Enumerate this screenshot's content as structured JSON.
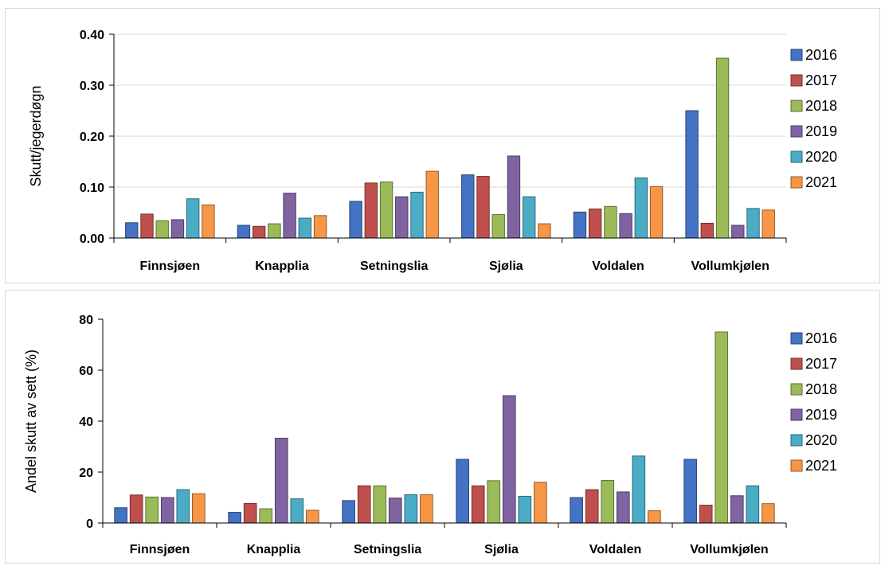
{
  "chart_data": [
    {
      "type": "bar",
      "ylabel": "Skutt/jegerdøgn",
      "xlabel": "",
      "ylim": [
        0,
        0.4
      ],
      "yticks": [
        0,
        0.1,
        0.2,
        0.3,
        0.4
      ],
      "ytick_labels": [
        "0.00",
        "0.10",
        "0.20",
        "0.30",
        "0.40"
      ],
      "categories": [
        "Finnsjøen",
        "Knapplia",
        "Setningslia",
        "Sjølia",
        "Voldalen",
        "Vollumkjølen"
      ],
      "legend_position": "right",
      "grid": true,
      "series": [
        {
          "name": "2016",
          "color": "#4472c4",
          "values": [
            0.03,
            0.025,
            0.072,
            0.124,
            0.051,
            0.25
          ]
        },
        {
          "name": "2017",
          "color": "#c0504d",
          "values": [
            0.047,
            0.023,
            0.108,
            0.121,
            0.057,
            0.029
          ]
        },
        {
          "name": "2018",
          "color": "#9bbb59",
          "values": [
            0.034,
            0.028,
            0.11,
            0.046,
            0.062,
            0.353
          ]
        },
        {
          "name": "2019",
          "color": "#8064a2",
          "values": [
            0.036,
            0.088,
            0.081,
            0.161,
            0.048,
            0.025
          ]
        },
        {
          "name": "2020",
          "color": "#4bacc6",
          "values": [
            0.077,
            0.039,
            0.09,
            0.081,
            0.118,
            0.058
          ]
        },
        {
          "name": "2021",
          "color": "#f79646",
          "values": [
            0.065,
            0.044,
            0.131,
            0.028,
            0.101,
            0.055
          ]
        }
      ]
    },
    {
      "type": "bar",
      "ylabel": "Andel skutt av sett (%)",
      "xlabel": "",
      "ylim": [
        0,
        80
      ],
      "yticks": [
        0,
        20,
        40,
        60,
        80
      ],
      "ytick_labels": [
        "0",
        "20",
        "40",
        "60",
        "80"
      ],
      "categories": [
        "Finnsjøen",
        "Knapplia",
        "Setningslia",
        "Sjølia",
        "Voldalen",
        "Vollumkjølen"
      ],
      "legend_position": "right",
      "grid": false,
      "series": [
        {
          "name": "2016",
          "color": "#4472c4",
          "values": [
            6.0,
            4.2,
            8.8,
            25.0,
            10.0,
            25.0
          ]
        },
        {
          "name": "2017",
          "color": "#c0504d",
          "values": [
            11.0,
            7.7,
            14.6,
            14.6,
            13.1,
            7.0
          ]
        },
        {
          "name": "2018",
          "color": "#9bbb59",
          "values": [
            10.2,
            5.6,
            14.6,
            16.6,
            16.7,
            75.0
          ]
        },
        {
          "name": "2019",
          "color": "#8064a2",
          "values": [
            10.0,
            33.3,
            9.8,
            50.0,
            12.2,
            10.7
          ]
        },
        {
          "name": "2020",
          "color": "#4bacc6",
          "values": [
            13.1,
            9.5,
            11.1,
            10.5,
            26.3,
            14.6
          ]
        },
        {
          "name": "2021",
          "color": "#f79646",
          "values": [
            11.5,
            5.0,
            11.1,
            16.0,
            4.8,
            7.6
          ]
        }
      ]
    }
  ]
}
